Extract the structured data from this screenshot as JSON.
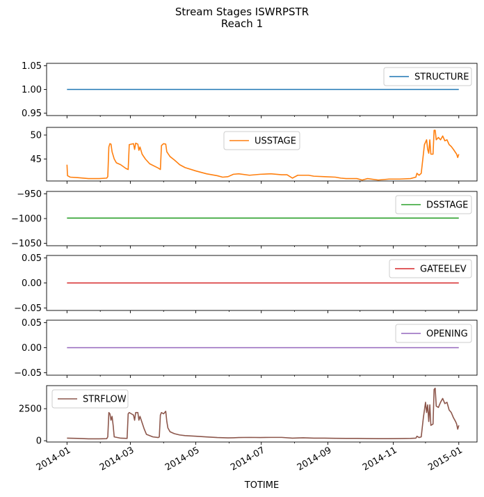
{
  "figure": {
    "title_line1": "Stream Stages ISWRPSTR",
    "title_line2": "Reach 1",
    "xlabel": "TOTIME"
  },
  "chart_data": {
    "type": "line",
    "title": "Stream Stages ISWRPSTR\nReach 1",
    "xlabel": "TOTIME",
    "x_range": [
      "2013-12-13",
      "2015-01-18"
    ],
    "x_ticks": [
      {
        "date": "2014-01-01",
        "label": "2014-01"
      },
      {
        "date": "2014-03-01",
        "label": "2014-03"
      },
      {
        "date": "2014-05-01",
        "label": "2014-05"
      },
      {
        "date": "2014-07-01",
        "label": "2014-07"
      },
      {
        "date": "2014-09-01",
        "label": "2014-09"
      },
      {
        "date": "2014-11-01",
        "label": "2014-11"
      },
      {
        "date": "2015-01-01",
        "label": "2015-01"
      }
    ],
    "panels": [
      {
        "name": "STRUCTURE",
        "color": "#1f77b4",
        "legend": "top-right",
        "ylim": [
          0.945,
          1.055
        ],
        "yticks": [
          {
            "v": 0.95,
            "label": "0.95"
          },
          {
            "v": 1.0,
            "label": "1.00"
          },
          {
            "v": 1.05,
            "label": "1.05"
          }
        ],
        "series": [
          [
            0,
            1.0
          ],
          [
            365,
            1.0
          ]
        ]
      },
      {
        "name": "USSTAGE",
        "color": "#ff7f0e",
        "legend": "top-center",
        "ylim": [
          40.4,
          51.6
        ],
        "yticks": [
          {
            "v": 45,
            "label": "45"
          },
          {
            "v": 50,
            "label": "50"
          }
        ],
        "series": [
          [
            0,
            43.8
          ],
          [
            0.5,
            41.5
          ],
          [
            3,
            41.2
          ],
          [
            10,
            41.1
          ],
          [
            20,
            40.9
          ],
          [
            30,
            40.9
          ],
          [
            37,
            41.0
          ],
          [
            38,
            41.3
          ],
          [
            39,
            47.5
          ],
          [
            40,
            48.2
          ],
          [
            41,
            48.1
          ],
          [
            42,
            46.5
          ],
          [
            44,
            45.0
          ],
          [
            46,
            44.2
          ],
          [
            50,
            43.8
          ],
          [
            55,
            43.0
          ],
          [
            57,
            42.8
          ],
          [
            58,
            48.0
          ],
          [
            62,
            48.2
          ],
          [
            63,
            47.0
          ],
          [
            64,
            48.3
          ],
          [
            66,
            48.1
          ],
          [
            67,
            46.8
          ],
          [
            68,
            47.5
          ],
          [
            70,
            46.0
          ],
          [
            73,
            45.0
          ],
          [
            77,
            44.0
          ],
          [
            85,
            43.1
          ],
          [
            87,
            42.8
          ],
          [
            88,
            47.8
          ],
          [
            90,
            48.2
          ],
          [
            92,
            48.1
          ],
          [
            93,
            46.5
          ],
          [
            96,
            45.5
          ],
          [
            100,
            44.8
          ],
          [
            105,
            43.8
          ],
          [
            110,
            43.2
          ],
          [
            120,
            42.5
          ],
          [
            130,
            41.9
          ],
          [
            140,
            41.5
          ],
          [
            145,
            41.2
          ],
          [
            150,
            41.3
          ],
          [
            155,
            41.8
          ],
          [
            160,
            41.9
          ],
          [
            170,
            41.6
          ],
          [
            180,
            41.8
          ],
          [
            190,
            41.9
          ],
          [
            200,
            41.7
          ],
          [
            205,
            41.7
          ],
          [
            210,
            41.0
          ],
          [
            215,
            41.6
          ],
          [
            225,
            41.6
          ],
          [
            230,
            41.4
          ],
          [
            240,
            41.3
          ],
          [
            250,
            41.2
          ],
          [
            255,
            41.0
          ],
          [
            260,
            40.9
          ],
          [
            270,
            40.9
          ],
          [
            275,
            40.6
          ],
          [
            280,
            40.9
          ],
          [
            290,
            40.6
          ],
          [
            300,
            40.8
          ],
          [
            310,
            40.8
          ],
          [
            320,
            40.9
          ],
          [
            325,
            41.2
          ],
          [
            326,
            42.0
          ],
          [
            328,
            41.6
          ],
          [
            330,
            42.0
          ],
          [
            333,
            48.0
          ],
          [
            335,
            49.0
          ],
          [
            336,
            47.0
          ],
          [
            337,
            46.2
          ],
          [
            338,
            49.0
          ],
          [
            339,
            46.0
          ],
          [
            341,
            46.0
          ],
          [
            342,
            51.0
          ],
          [
            343,
            51.0
          ],
          [
            344,
            49.0
          ],
          [
            346,
            49.5
          ],
          [
            348,
            49.0
          ],
          [
            350,
            49.8
          ],
          [
            352,
            48.8
          ],
          [
            354,
            49.0
          ],
          [
            356,
            48.0
          ],
          [
            358,
            47.6
          ],
          [
            360,
            47.0
          ],
          [
            363,
            46.0
          ],
          [
            364,
            45.3
          ],
          [
            365,
            46.0
          ]
        ]
      },
      {
        "name": "DSSTAGE",
        "color": "#2ca02c",
        "legend": "top-right",
        "ylim": [
          -1055,
          -945
        ],
        "yticks": [
          {
            "v": -950,
            "label": "−950"
          },
          {
            "v": -1000,
            "label": "−1000"
          },
          {
            "v": -1050,
            "label": "−1050"
          }
        ],
        "series": [
          [
            0,
            -999
          ],
          [
            365,
            -999
          ]
        ]
      },
      {
        "name": "GATEELEV",
        "color": "#d62728",
        "legend": "top-right",
        "ylim": [
          -0.055,
          0.055
        ],
        "yticks": [
          {
            "v": 0.05,
            "label": "0.05"
          },
          {
            "v": 0.0,
            "label": "0.00"
          },
          {
            "v": -0.05,
            "label": "−0.05"
          }
        ],
        "series": [
          [
            0,
            0.0
          ],
          [
            365,
            0.0
          ]
        ]
      },
      {
        "name": "OPENING",
        "color": "#9467bd",
        "legend": "top-right",
        "ylim": [
          -0.055,
          0.055
        ],
        "yticks": [
          {
            "v": 0.05,
            "label": "0.05"
          },
          {
            "v": 0.0,
            "label": "0.00"
          },
          {
            "v": -0.05,
            "label": "−0.05"
          }
        ],
        "series": [
          [
            0,
            0.0
          ],
          [
            365,
            0.0
          ]
        ]
      },
      {
        "name": "STRFLOW",
        "color": "#8c564b",
        "legend": "top-left",
        "ylim": [
          -100,
          4300
        ],
        "yticks": [
          {
            "v": 0,
            "label": "0"
          },
          {
            "v": 2500,
            "label": "2500"
          }
        ],
        "series": [
          [
            0,
            200
          ],
          [
            10,
            180
          ],
          [
            20,
            150
          ],
          [
            30,
            150
          ],
          [
            37,
            160
          ],
          [
            38,
            300
          ],
          [
            39,
            2200
          ],
          [
            40,
            2100
          ],
          [
            41,
            1600
          ],
          [
            42,
            1900
          ],
          [
            43,
            1200
          ],
          [
            44,
            300
          ],
          [
            50,
            200
          ],
          [
            56,
            180
          ],
          [
            57,
            2100
          ],
          [
            58,
            2200
          ],
          [
            60,
            2100
          ],
          [
            62,
            2000
          ],
          [
            63,
            1600
          ],
          [
            64,
            2200
          ],
          [
            66,
            2200
          ],
          [
            67,
            1600
          ],
          [
            68,
            1900
          ],
          [
            70,
            1400
          ],
          [
            72,
            900
          ],
          [
            74,
            500
          ],
          [
            80,
            300
          ],
          [
            85,
            250
          ],
          [
            86,
            300
          ],
          [
            87,
            2000
          ],
          [
            88,
            2200
          ],
          [
            90,
            2100
          ],
          [
            92,
            2300
          ],
          [
            93,
            1500
          ],
          [
            94,
            1000
          ],
          [
            96,
            700
          ],
          [
            100,
            550
          ],
          [
            105,
            450
          ],
          [
            110,
            400
          ],
          [
            120,
            350
          ],
          [
            130,
            300
          ],
          [
            140,
            250
          ],
          [
            150,
            220
          ],
          [
            155,
            230
          ],
          [
            160,
            250
          ],
          [
            170,
            260
          ],
          [
            180,
            250
          ],
          [
            190,
            260
          ],
          [
            200,
            260
          ],
          [
            210,
            200
          ],
          [
            220,
            230
          ],
          [
            230,
            200
          ],
          [
            240,
            200
          ],
          [
            250,
            190
          ],
          [
            260,
            180
          ],
          [
            270,
            180
          ],
          [
            280,
            170
          ],
          [
            290,
            160
          ],
          [
            300,
            160
          ],
          [
            310,
            170
          ],
          [
            320,
            180
          ],
          [
            325,
            200
          ],
          [
            326,
            350
          ],
          [
            328,
            250
          ],
          [
            330,
            300
          ],
          [
            332,
            1800
          ],
          [
            334,
            3000
          ],
          [
            335,
            2200
          ],
          [
            336,
            2800
          ],
          [
            337,
            1500
          ],
          [
            338,
            2800
          ],
          [
            339,
            1200
          ],
          [
            341,
            1300
          ],
          [
            342,
            4000
          ],
          [
            343,
            4100
          ],
          [
            344,
            2700
          ],
          [
            346,
            2600
          ],
          [
            348,
            3000
          ],
          [
            350,
            3300
          ],
          [
            352,
            2900
          ],
          [
            354,
            3000
          ],
          [
            356,
            2400
          ],
          [
            358,
            2200
          ],
          [
            360,
            1800
          ],
          [
            362,
            1500
          ],
          [
            363,
            1300
          ],
          [
            364,
            900
          ],
          [
            365,
            1200
          ]
        ]
      }
    ]
  }
}
